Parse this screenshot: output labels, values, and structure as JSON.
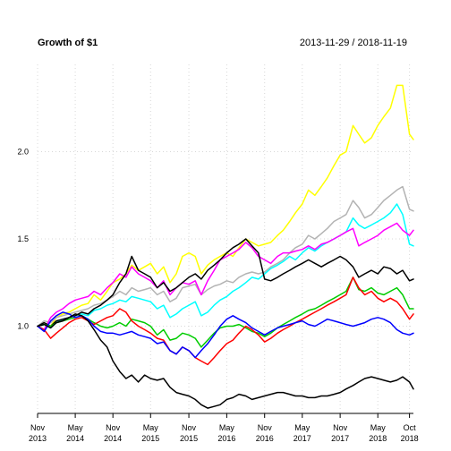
{
  "chart_data": {
    "type": "line",
    "title": "Growth of $1",
    "subtitle": "2013-11-29 / 2018-11-19",
    "xlabel": "",
    "ylabel": "",
    "x_range": [
      "2013-11-29",
      "2018-11-19"
    ],
    "ylim": [
      0.5,
      2.5
    ],
    "y_ticks": [
      1.0,
      1.5,
      2.0
    ],
    "y_tick_labels": [
      "1.0",
      "1.5",
      "2.0"
    ],
    "x_ticks": [
      {
        "date": "2013-11-29",
        "line1": "Nov",
        "line2": "2013"
      },
      {
        "date": "2014-05-30",
        "line1": "May",
        "line2": "2014"
      },
      {
        "date": "2014-11-28",
        "line1": "Nov",
        "line2": "2014"
      },
      {
        "date": "2015-05-29",
        "line1": "May",
        "line2": "2015"
      },
      {
        "date": "2015-11-30",
        "line1": "Nov",
        "line2": "2015"
      },
      {
        "date": "2016-05-31",
        "line1": "May",
        "line2": "2016"
      },
      {
        "date": "2016-11-30",
        "line1": "Nov",
        "line2": "2016"
      },
      {
        "date": "2017-05-31",
        "line1": "May",
        "line2": "2017"
      },
      {
        "date": "2017-11-30",
        "line1": "Nov",
        "line2": "2017"
      },
      {
        "date": "2018-05-31",
        "line1": "May",
        "line2": "2018"
      },
      {
        "date": "2018-10-31",
        "line1": "Oct",
        "line2": "2018"
      }
    ],
    "grid": true,
    "legend": "none",
    "dates": [
      "2013-11-29",
      "2013-12-31",
      "2014-01-31",
      "2014-02-28",
      "2014-03-31",
      "2014-04-30",
      "2014-05-30",
      "2014-06-30",
      "2014-07-31",
      "2014-08-29",
      "2014-09-30",
      "2014-10-31",
      "2014-11-28",
      "2014-12-31",
      "2015-01-30",
      "2015-02-27",
      "2015-03-31",
      "2015-04-30",
      "2015-05-29",
      "2015-06-30",
      "2015-07-31",
      "2015-08-31",
      "2015-09-30",
      "2015-10-30",
      "2015-11-30",
      "2015-12-31",
      "2016-01-29",
      "2016-02-29",
      "2016-03-31",
      "2016-04-29",
      "2016-05-31",
      "2016-06-30",
      "2016-07-29",
      "2016-08-31",
      "2016-09-30",
      "2016-10-31",
      "2016-11-30",
      "2016-12-30",
      "2017-01-31",
      "2017-02-28",
      "2017-03-31",
      "2017-04-28",
      "2017-05-31",
      "2017-06-30",
      "2017-07-31",
      "2017-08-31",
      "2017-09-29",
      "2017-10-31",
      "2017-11-30",
      "2017-12-29",
      "2018-01-31",
      "2018-02-28",
      "2018-03-29",
      "2018-04-30",
      "2018-05-31",
      "2018-06-29",
      "2018-07-31",
      "2018-08-31",
      "2018-09-28",
      "2018-10-31",
      "2018-11-19"
    ],
    "series": [
      {
        "color": "#FFFF00",
        "values": [
          1.0,
          1.02,
          1.0,
          1.05,
          1.07,
          1.08,
          1.1,
          1.12,
          1.13,
          1.18,
          1.15,
          1.2,
          1.25,
          1.27,
          1.3,
          1.35,
          1.32,
          1.34,
          1.36,
          1.3,
          1.34,
          1.25,
          1.3,
          1.4,
          1.42,
          1.4,
          1.3,
          1.35,
          1.38,
          1.4,
          1.42,
          1.4,
          1.45,
          1.5,
          1.48,
          1.46,
          1.47,
          1.48,
          1.52,
          1.55,
          1.6,
          1.65,
          1.7,
          1.78,
          1.75,
          1.8,
          1.85,
          1.92,
          1.98,
          2.0,
          2.15,
          2.1,
          2.05,
          2.08,
          2.15,
          2.2,
          2.25,
          2.38,
          2.38,
          2.1,
          2.07
        ]
      },
      {
        "color": "#B3B3B3",
        "values": [
          1.0,
          1.03,
          1.02,
          1.05,
          1.06,
          1.07,
          1.08,
          1.09,
          1.1,
          1.12,
          1.13,
          1.15,
          1.17,
          1.2,
          1.18,
          1.22,
          1.2,
          1.21,
          1.22,
          1.18,
          1.2,
          1.14,
          1.16,
          1.22,
          1.23,
          1.24,
          1.18,
          1.21,
          1.23,
          1.24,
          1.26,
          1.25,
          1.28,
          1.3,
          1.31,
          1.3,
          1.31,
          1.34,
          1.36,
          1.38,
          1.42,
          1.45,
          1.47,
          1.52,
          1.5,
          1.53,
          1.56,
          1.6,
          1.62,
          1.64,
          1.72,
          1.68,
          1.62,
          1.64,
          1.68,
          1.72,
          1.75,
          1.78,
          1.8,
          1.67,
          1.66
        ]
      },
      {
        "color": "#00FFFF",
        "values": [
          1.0,
          1.01,
          0.99,
          1.02,
          1.04,
          1.05,
          1.06,
          1.07,
          1.06,
          1.09,
          1.1,
          1.12,
          1.13,
          1.15,
          1.14,
          1.17,
          1.16,
          1.15,
          1.14,
          1.1,
          1.12,
          1.05,
          1.07,
          1.1,
          1.12,
          1.14,
          1.06,
          1.08,
          1.12,
          1.15,
          1.17,
          1.2,
          1.22,
          1.25,
          1.28,
          1.27,
          1.3,
          1.33,
          1.35,
          1.37,
          1.4,
          1.38,
          1.42,
          1.45,
          1.43,
          1.46,
          1.48,
          1.5,
          1.52,
          1.54,
          1.62,
          1.58,
          1.56,
          1.58,
          1.6,
          1.62,
          1.65,
          1.7,
          1.64,
          1.47,
          1.46
        ]
      },
      {
        "color": "#FF00FF",
        "values": [
          1.0,
          0.98,
          1.05,
          1.08,
          1.1,
          1.13,
          1.15,
          1.16,
          1.17,
          1.2,
          1.18,
          1.22,
          1.25,
          1.3,
          1.28,
          1.34,
          1.3,
          1.28,
          1.26,
          1.22,
          1.26,
          1.18,
          1.22,
          1.25,
          1.24,
          1.26,
          1.18,
          1.26,
          1.32,
          1.38,
          1.4,
          1.42,
          1.44,
          1.48,
          1.45,
          1.4,
          1.38,
          1.36,
          1.4,
          1.42,
          1.42,
          1.43,
          1.44,
          1.46,
          1.44,
          1.47,
          1.48,
          1.5,
          1.52,
          1.54,
          1.56,
          1.46,
          1.48,
          1.5,
          1.52,
          1.55,
          1.57,
          1.59,
          1.55,
          1.52,
          1.55
        ]
      },
      {
        "color": "#000000",
        "values": [
          1.0,
          1.02,
          1.0,
          1.03,
          1.04,
          1.05,
          1.06,
          1.08,
          1.07,
          1.1,
          1.12,
          1.15,
          1.18,
          1.25,
          1.3,
          1.4,
          1.32,
          1.3,
          1.28,
          1.22,
          1.25,
          1.2,
          1.22,
          1.25,
          1.28,
          1.3,
          1.27,
          1.32,
          1.35,
          1.38,
          1.42,
          1.45,
          1.47,
          1.5,
          1.46,
          1.42,
          1.27,
          1.26,
          1.28,
          1.3,
          1.32,
          1.34,
          1.36,
          1.38,
          1.36,
          1.34,
          1.36,
          1.38,
          1.4,
          1.38,
          1.34,
          1.28,
          1.3,
          1.32,
          1.3,
          1.34,
          1.33,
          1.3,
          1.32,
          1.26,
          1.27
        ]
      },
      {
        "color": "#00CC00",
        "values": [
          1.0,
          1.01,
          1.0,
          1.02,
          1.03,
          1.04,
          1.05,
          1.06,
          1.04,
          1.02,
          1.0,
          0.99,
          1.0,
          1.02,
          1.0,
          1.04,
          1.03,
          1.02,
          1.0,
          0.95,
          0.98,
          0.92,
          0.93,
          0.96,
          0.95,
          0.93,
          0.88,
          0.92,
          0.96,
          0.99,
          1.0,
          1.0,
          1.01,
          0.99,
          0.97,
          0.96,
          0.94,
          0.96,
          0.99,
          1.01,
          1.03,
          1.05,
          1.07,
          1.09,
          1.1,
          1.12,
          1.14,
          1.16,
          1.18,
          1.2,
          1.28,
          1.21,
          1.2,
          1.22,
          1.19,
          1.18,
          1.2,
          1.22,
          1.18,
          1.1,
          1.1
        ]
      },
      {
        "color": "#FF0000",
        "values": [
          1.0,
          0.98,
          0.93,
          0.96,
          0.99,
          1.02,
          1.04,
          1.05,
          1.03,
          1.01,
          1.03,
          1.05,
          1.06,
          1.1,
          1.08,
          1.03,
          1.0,
          0.98,
          0.96,
          0.93,
          0.92,
          0.86,
          0.84,
          0.88,
          0.86,
          0.82,
          0.8,
          0.78,
          0.82,
          0.86,
          0.9,
          0.92,
          0.96,
          1.0,
          0.98,
          0.95,
          0.91,
          0.93,
          0.96,
          0.98,
          1.0,
          1.02,
          1.04,
          1.06,
          1.08,
          1.1,
          1.12,
          1.14,
          1.16,
          1.18,
          1.28,
          1.22,
          1.18,
          1.2,
          1.16,
          1.14,
          1.16,
          1.14,
          1.1,
          1.04,
          1.07
        ]
      },
      {
        "color": "#0000FF",
        "values": [
          1.0,
          0.97,
          1.03,
          1.06,
          1.08,
          1.07,
          1.05,
          1.06,
          1.04,
          1.0,
          0.97,
          0.96,
          0.96,
          0.95,
          0.96,
          0.97,
          0.95,
          0.94,
          0.93,
          0.9,
          0.91,
          0.86,
          0.84,
          0.88,
          0.86,
          0.82,
          0.86,
          0.9,
          0.95,
          1.0,
          1.04,
          1.06,
          1.04,
          1.02,
          0.99,
          0.97,
          0.95,
          0.97,
          0.99,
          1.0,
          1.01,
          1.02,
          1.03,
          1.01,
          1.0,
          1.02,
          1.04,
          1.03,
          1.02,
          1.01,
          1.0,
          1.01,
          1.02,
          1.04,
          1.05,
          1.04,
          1.02,
          0.98,
          0.96,
          0.95,
          0.96
        ]
      },
      {
        "color": "#000000",
        "values": [
          1.0,
          1.01,
          0.99,
          1.02,
          1.03,
          1.05,
          1.07,
          1.06,
          1.03,
          0.98,
          0.92,
          0.88,
          0.8,
          0.74,
          0.7,
          0.72,
          0.68,
          0.72,
          0.7,
          0.69,
          0.7,
          0.65,
          0.62,
          0.61,
          0.6,
          0.58,
          0.55,
          0.53,
          0.54,
          0.55,
          0.58,
          0.59,
          0.61,
          0.6,
          0.58,
          0.59,
          0.6,
          0.61,
          0.62,
          0.62,
          0.61,
          0.6,
          0.6,
          0.59,
          0.59,
          0.6,
          0.6,
          0.61,
          0.62,
          0.64,
          0.66,
          0.68,
          0.7,
          0.71,
          0.7,
          0.69,
          0.68,
          0.69,
          0.71,
          0.68,
          0.64
        ]
      }
    ]
  }
}
